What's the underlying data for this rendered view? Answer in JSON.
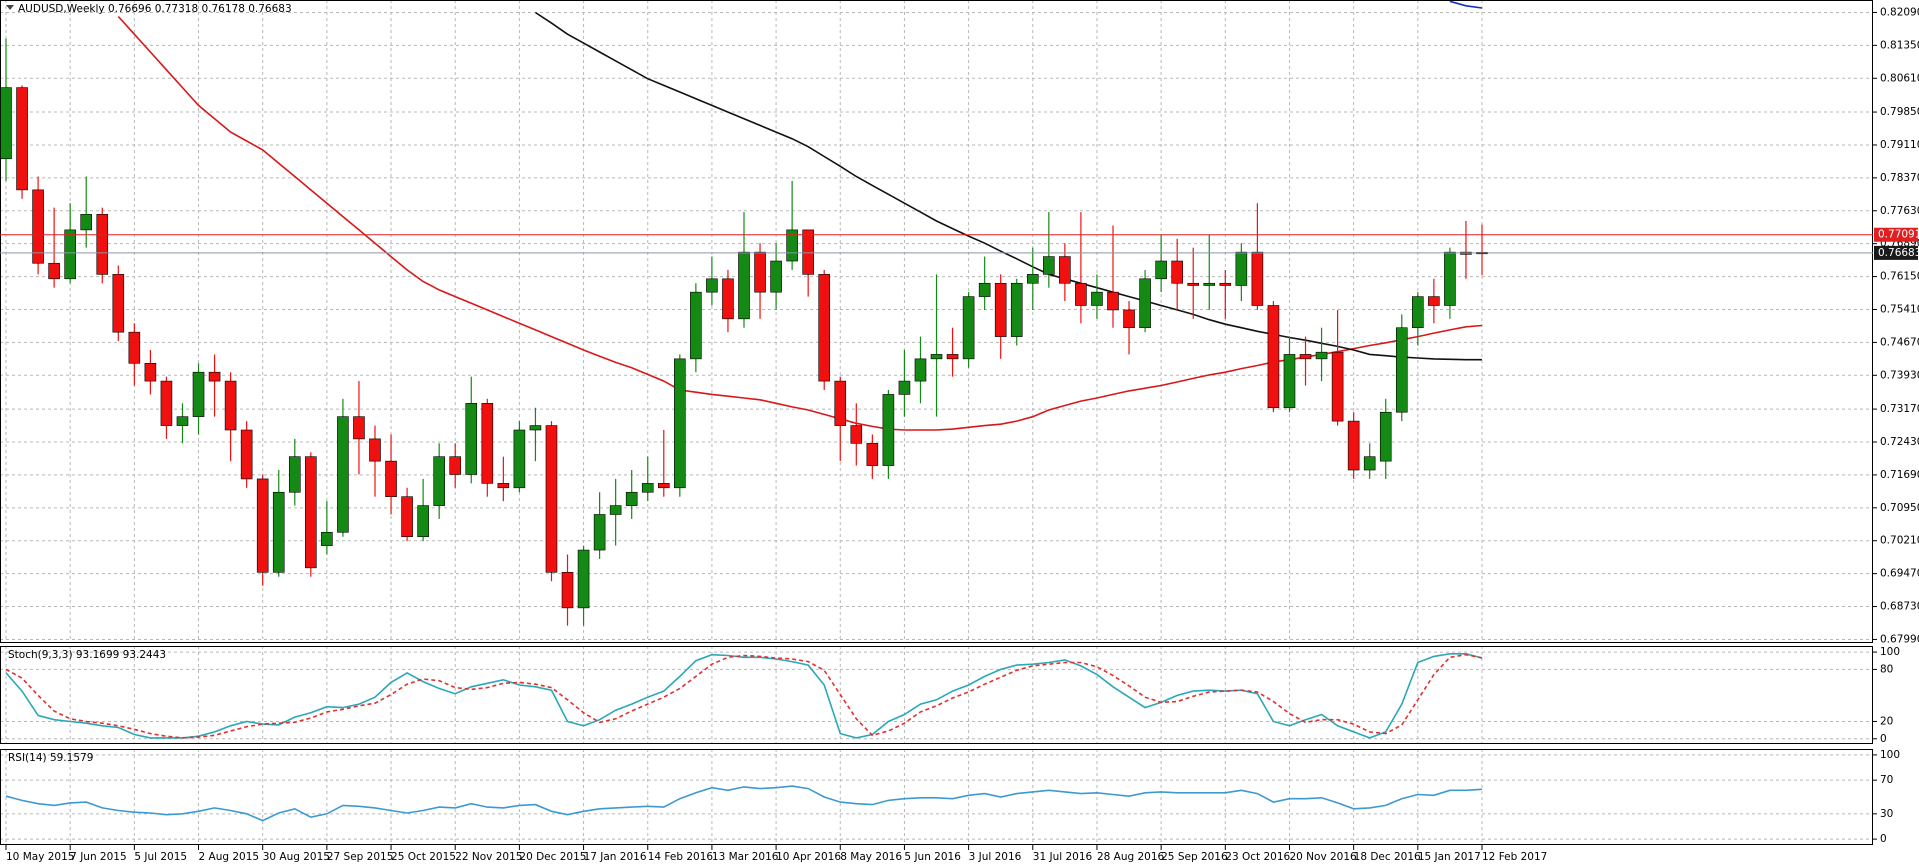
{
  "chart_data": [
    {
      "type": "candlestick",
      "title": "AUDUSD,Weekly 0.76696 0.77318 0.76178 0.76683",
      "categories": [
        "10 May 2015",
        null,
        null,
        null,
        "7 Jun 2015",
        null,
        null,
        null,
        "5 Jul 2015",
        null,
        null,
        null,
        "2 Aug 2015",
        null,
        null,
        null,
        "30 Aug 2015",
        null,
        null,
        null,
        "27 Sep 2015",
        null,
        null,
        null,
        "25 Oct 2015",
        null,
        null,
        null,
        "22 Nov 2015",
        null,
        null,
        null,
        "20 Dec 2015",
        null,
        null,
        null,
        "17 Jan 2016",
        null,
        null,
        null,
        "14 Feb 2016",
        null,
        null,
        null,
        "13 Mar 2016",
        null,
        null,
        null,
        "10 Apr 2016",
        null,
        null,
        null,
        "8 May 2016",
        null,
        null,
        null,
        "5 Jun 2016",
        null,
        null,
        null,
        "3 Jul 2016",
        null,
        null,
        null,
        "31 Jul 2016",
        null,
        null,
        null,
        "28 Aug 2016",
        null,
        null,
        null,
        "25 Sep 2016",
        null,
        null,
        null,
        "23 Oct 2016",
        null,
        null,
        null,
        "20 Nov 2016",
        null,
        null,
        null,
        "18 Dec 2016",
        null,
        null,
        null,
        "15 Jan 2017",
        null,
        null,
        null,
        "12 Feb 2017"
      ],
      "open": [
        0.788,
        0.804,
        0.781,
        0.7645,
        0.761,
        0.772,
        0.7755,
        0.762,
        0.749,
        0.742,
        0.738,
        0.728,
        0.73,
        0.74,
        0.738,
        0.727,
        0.716,
        0.695,
        0.713,
        0.721,
        0.701,
        0.704,
        0.73,
        0.725,
        0.72,
        0.712,
        0.703,
        0.71,
        0.721,
        0.717,
        0.733,
        0.715,
        0.714,
        0.727,
        0.728,
        0.695,
        0.687,
        0.7,
        0.708,
        0.71,
        0.713,
        0.715,
        0.714,
        0.743,
        0.758,
        0.761,
        0.752,
        0.767,
        0.758,
        0.765,
        0.772,
        0.762,
        0.738,
        0.728,
        0.724,
        0.719,
        0.735,
        0.738,
        0.743,
        0.744,
        0.743,
        0.757,
        0.76,
        0.748,
        0.76,
        0.762,
        0.766,
        0.76,
        0.755,
        0.758,
        0.754,
        0.75,
        0.761,
        0.765,
        0.76,
        0.7595,
        0.76,
        0.7595,
        0.767,
        0.755,
        0.732,
        0.744,
        0.743,
        0.7445,
        0.729,
        0.718,
        0.72,
        0.731,
        0.75,
        0.757,
        0.755,
        0.767,
        0.76696
      ],
      "high": [
        0.815,
        0.8045,
        0.784,
        0.777,
        0.778,
        0.784,
        0.777,
        0.764,
        0.751,
        0.745,
        0.739,
        0.733,
        0.742,
        0.744,
        0.74,
        0.729,
        0.717,
        0.718,
        0.725,
        0.722,
        0.711,
        0.734,
        0.738,
        0.728,
        0.726,
        0.714,
        0.716,
        0.724,
        0.724,
        0.739,
        0.734,
        0.721,
        0.729,
        0.732,
        0.729,
        0.699,
        0.701,
        0.713,
        0.716,
        0.718,
        0.721,
        0.727,
        0.744,
        0.76,
        0.766,
        0.763,
        0.776,
        0.769,
        0.769,
        0.783,
        0.772,
        0.763,
        0.739,
        0.733,
        0.726,
        0.736,
        0.745,
        0.748,
        0.762,
        0.75,
        0.758,
        0.766,
        0.762,
        0.761,
        0.768,
        0.776,
        0.769,
        0.776,
        0.762,
        0.773,
        0.756,
        0.763,
        0.771,
        0.77,
        0.768,
        0.771,
        0.763,
        0.769,
        0.778,
        0.756,
        0.748,
        0.748,
        0.75,
        0.754,
        0.731,
        0.724,
        0.734,
        0.753,
        0.758,
        0.761,
        0.768,
        0.774,
        0.77318
      ],
      "low": [
        0.783,
        0.779,
        0.762,
        0.759,
        0.76,
        0.768,
        0.76,
        0.747,
        0.737,
        0.735,
        0.725,
        0.724,
        0.726,
        0.73,
        0.72,
        0.714,
        0.692,
        0.694,
        0.71,
        0.694,
        0.699,
        0.703,
        0.717,
        0.712,
        0.708,
        0.702,
        0.702,
        0.707,
        0.714,
        0.715,
        0.712,
        0.711,
        0.713,
        0.72,
        0.693,
        0.683,
        0.683,
        0.698,
        0.701,
        0.707,
        0.711,
        0.712,
        0.712,
        0.74,
        0.755,
        0.749,
        0.75,
        0.752,
        0.754,
        0.763,
        0.757,
        0.736,
        0.72,
        0.719,
        0.716,
        0.716,
        0.73,
        0.733,
        0.73,
        0.739,
        0.741,
        0.754,
        0.743,
        0.746,
        0.754,
        0.759,
        0.756,
        0.751,
        0.752,
        0.75,
        0.744,
        0.749,
        0.758,
        0.754,
        0.752,
        0.754,
        0.752,
        0.756,
        0.754,
        0.731,
        0.731,
        0.737,
        0.738,
        0.728,
        0.716,
        0.716,
        0.716,
        0.729,
        0.746,
        0.751,
        0.752,
        0.761,
        0.76178
      ],
      "close": [
        0.804,
        0.781,
        0.7645,
        0.761,
        0.772,
        0.7755,
        0.762,
        0.749,
        0.742,
        0.738,
        0.728,
        0.73,
        0.74,
        0.738,
        0.727,
        0.716,
        0.695,
        0.713,
        0.721,
        0.696,
        0.704,
        0.73,
        0.725,
        0.72,
        0.712,
        0.703,
        0.71,
        0.721,
        0.717,
        0.733,
        0.715,
        0.714,
        0.727,
        0.728,
        0.695,
        0.687,
        0.7,
        0.708,
        0.71,
        0.713,
        0.715,
        0.714,
        0.743,
        0.758,
        0.761,
        0.752,
        0.767,
        0.758,
        0.765,
        0.772,
        0.762,
        0.738,
        0.728,
        0.724,
        0.719,
        0.735,
        0.738,
        0.743,
        0.744,
        0.743,
        0.757,
        0.76,
        0.748,
        0.76,
        0.762,
        0.766,
        0.76,
        0.755,
        0.758,
        0.754,
        0.75,
        0.761,
        0.765,
        0.76,
        0.7595,
        0.76,
        0.7595,
        0.767,
        0.755,
        0.732,
        0.744,
        0.743,
        0.7445,
        0.729,
        0.718,
        0.721,
        0.731,
        0.75,
        0.757,
        0.755,
        0.767,
        0.7665,
        0.76683
      ],
      "up_color": "#148a14",
      "down_color": "#f01010",
      "lines": [
        {
          "color": "#d81818",
          "values": [
            null,
            null,
            null,
            null,
            null,
            null,
            null,
            0.82,
            0.816,
            0.812,
            0.808,
            0.804,
            0.8,
            0.797,
            0.794,
            0.792,
            0.79,
            0.787,
            0.784,
            0.781,
            0.778,
            0.775,
            0.772,
            0.769,
            0.766,
            0.763,
            0.7604,
            0.7585,
            0.757,
            0.7555,
            0.754,
            0.7525,
            0.751,
            0.7495,
            0.748,
            0.7465,
            0.745,
            0.7436,
            0.7422,
            0.741,
            0.7395,
            0.738,
            0.736,
            0.7355,
            0.735,
            0.7346,
            0.7342,
            0.7338,
            0.733,
            0.7322,
            0.7315,
            0.7305,
            0.7295,
            0.7285,
            0.7278,
            0.7272,
            0.727,
            0.727,
            0.727,
            0.7272,
            0.7276,
            0.728,
            0.7283,
            0.729,
            0.73,
            0.7315,
            0.7325,
            0.7335,
            0.7342,
            0.735,
            0.7358,
            0.7364,
            0.737,
            0.7378,
            0.7386,
            0.7394,
            0.74,
            0.7408,
            0.7415,
            0.7423,
            0.7428,
            0.7434,
            0.744,
            0.7446,
            0.7453,
            0.746,
            0.7466,
            0.7473,
            0.748,
            0.7488,
            0.7495,
            0.7502,
            0.7505
          ]
        },
        {
          "color": "#111111",
          "values": [
            null,
            null,
            null,
            null,
            null,
            null,
            null,
            null,
            null,
            null,
            null,
            null,
            null,
            null,
            null,
            null,
            null,
            null,
            null,
            null,
            null,
            null,
            null,
            null,
            null,
            null,
            null,
            null,
            null,
            null,
            null,
            null,
            null,
            0.8209,
            0.8185,
            0.816,
            0.814,
            0.812,
            0.81,
            0.808,
            0.806,
            0.8045,
            0.803,
            0.8015,
            0.8,
            0.7985,
            0.797,
            0.7955,
            0.794,
            0.7925,
            0.7907,
            0.7885,
            0.7863,
            0.784,
            0.782,
            0.78,
            0.778,
            0.776,
            0.774,
            0.7723,
            0.7706,
            0.769,
            0.7672,
            0.7655,
            0.7637,
            0.762,
            0.761,
            0.76,
            0.759,
            0.758,
            0.757,
            0.756,
            0.755,
            0.754,
            0.753,
            0.7518,
            0.7508,
            0.75,
            0.7492,
            0.7485,
            0.7478,
            0.7472,
            0.7465,
            0.7458,
            0.745,
            0.744,
            0.7437,
            0.7434,
            0.7432,
            0.743,
            0.7429,
            0.7428,
            0.7428
          ]
        },
        {
          "color": "#1030c8",
          "values": [
            null,
            null,
            null,
            null,
            null,
            null,
            null,
            null,
            null,
            null,
            null,
            null,
            null,
            null,
            null,
            null,
            null,
            null,
            null,
            null,
            null,
            null,
            null,
            null,
            null,
            null,
            null,
            null,
            null,
            null,
            null,
            null,
            null,
            null,
            null,
            null,
            null,
            null,
            null,
            null,
            null,
            null,
            null,
            null,
            null,
            null,
            null,
            null,
            null,
            null,
            null,
            null,
            null,
            null,
            null,
            null,
            null,
            null,
            null,
            null,
            null,
            null,
            null,
            null,
            null,
            null,
            null,
            null,
            null,
            null,
            null,
            null,
            null,
            null,
            null,
            null,
            null,
            null,
            null,
            null,
            null,
            null,
            null,
            null,
            null,
            null,
            null,
            null,
            null,
            null,
            0.8234,
            0.8224,
            0.8219
          ]
        }
      ],
      "hlines": [
        {
          "value": 0.77091,
          "label": "0.77091",
          "color": "#e02020"
        },
        {
          "value": 0.76683,
          "label": "0.76683",
          "color": "#8a96a6"
        }
      ],
      "ylim": [
        0.6791,
        0.8237
      ],
      "yticks": [
        {
          "value": 0.8209,
          "label": "0.82090"
        },
        {
          "value": 0.8135,
          "label": "0.81350"
        },
        {
          "value": 0.8061,
          "label": "0.80610"
        },
        {
          "value": 0.7985,
          "label": "0.79850"
        },
        {
          "value": 0.7911,
          "label": "0.79110"
        },
        {
          "value": 0.7837,
          "label": "0.78370"
        },
        {
          "value": 0.7763,
          "label": "0.77630"
        },
        {
          "value": 0.7689,
          "label": "0.76890"
        },
        {
          "value": 0.7615,
          "label": "0.76150"
        },
        {
          "value": 0.7541,
          "label": "0.75410"
        },
        {
          "value": 0.7467,
          "label": "0.74670"
        },
        {
          "value": 0.7393,
          "label": "0.73930"
        },
        {
          "value": 0.7317,
          "label": "0.73170"
        },
        {
          "value": 0.7243,
          "label": "0.72430"
        },
        {
          "value": 0.7169,
          "label": "0.71690"
        },
        {
          "value": 0.7095,
          "label": "0.70950"
        },
        {
          "value": 0.7021,
          "label": "0.70210"
        },
        {
          "value": 0.6947,
          "label": "0.69470"
        },
        {
          "value": 0.6873,
          "label": "0.68730"
        },
        {
          "value": 0.6799,
          "label": "0.67990"
        }
      ],
      "grid": true
    },
    {
      "type": "line",
      "title": "Stoch(9,3,3) 93.1699 93.2443",
      "series": [
        {
          "color": "#2aa8b8",
          "values": [
            76,
            55,
            27,
            22,
            20,
            18,
            15,
            13,
            5,
            1,
            1,
            1,
            3,
            8,
            15,
            20,
            17,
            16,
            25,
            30,
            37,
            36,
            40,
            48,
            65,
            76,
            66,
            58,
            52,
            60,
            64,
            68,
            62,
            60,
            56,
            20,
            15,
            22,
            33,
            40,
            48,
            55,
            72,
            90,
            97,
            96,
            94,
            94,
            92,
            89,
            85,
            62,
            6,
            1,
            5,
            20,
            28,
            40,
            45,
            55,
            62,
            72,
            80,
            85,
            86,
            88,
            91,
            84,
            74,
            60,
            48,
            36,
            42,
            50,
            55,
            56,
            55,
            56,
            52,
            20,
            15,
            22,
            28,
            15,
            8,
            1,
            8,
            40,
            88,
            95,
            98,
            98,
            93.1699
          ]
        },
        {
          "color": "#e03030",
          "dash": true,
          "values": [
            80,
            70,
            50,
            32,
            23,
            20,
            18,
            15,
            11,
            6,
            3,
            1,
            2,
            4,
            9,
            14,
            17,
            18,
            19,
            24,
            31,
            34,
            38,
            41,
            51,
            63,
            69,
            67,
            59,
            57,
            59,
            64,
            65,
            63,
            59,
            45,
            30,
            19,
            23,
            32,
            40,
            48,
            58,
            72,
            86,
            94,
            96,
            95,
            93,
            92,
            89,
            79,
            51,
            23,
            4,
            9,
            18,
            31,
            38,
            47,
            54,
            63,
            71,
            79,
            84,
            86,
            88,
            88,
            83,
            73,
            61,
            48,
            42,
            43,
            49,
            54,
            55,
            56,
            54,
            43,
            29,
            19,
            22,
            22,
            17,
            8,
            6,
            16,
            45,
            74,
            94,
            97,
            93.2443
          ]
        }
      ],
      "ylim": [
        -6,
        107
      ],
      "yticks": [
        100,
        80,
        20,
        0
      ],
      "grid": true
    },
    {
      "type": "line",
      "title": "RSI(14) 59.1579",
      "series": [
        {
          "color": "#3d9ad0",
          "values": [
            51,
            46,
            42,
            40,
            43,
            44,
            37,
            34,
            32,
            31,
            29,
            30,
            33,
            37,
            34,
            30,
            22,
            31,
            36,
            26,
            30,
            40,
            39,
            37,
            34,
            31,
            34,
            38,
            37,
            42,
            38,
            37,
            40,
            41,
            33,
            29,
            33,
            36,
            37,
            38,
            39,
            38,
            48,
            55,
            61,
            58,
            62,
            60,
            61,
            63,
            60,
            50,
            44,
            42,
            41,
            46,
            48,
            49,
            49,
            48,
            52,
            54,
            50,
            54,
            56,
            58,
            56,
            54,
            55,
            53,
            51,
            55,
            56,
            55,
            55,
            55,
            55,
            58,
            54,
            44,
            48,
            48,
            49,
            43,
            36,
            37,
            40,
            48,
            53,
            52,
            58,
            58,
            59.1579
          ]
        }
      ],
      "ylim": [
        -7,
        107
      ],
      "yticks": [
        100,
        70,
        30,
        0
      ],
      "grid": true
    }
  ]
}
